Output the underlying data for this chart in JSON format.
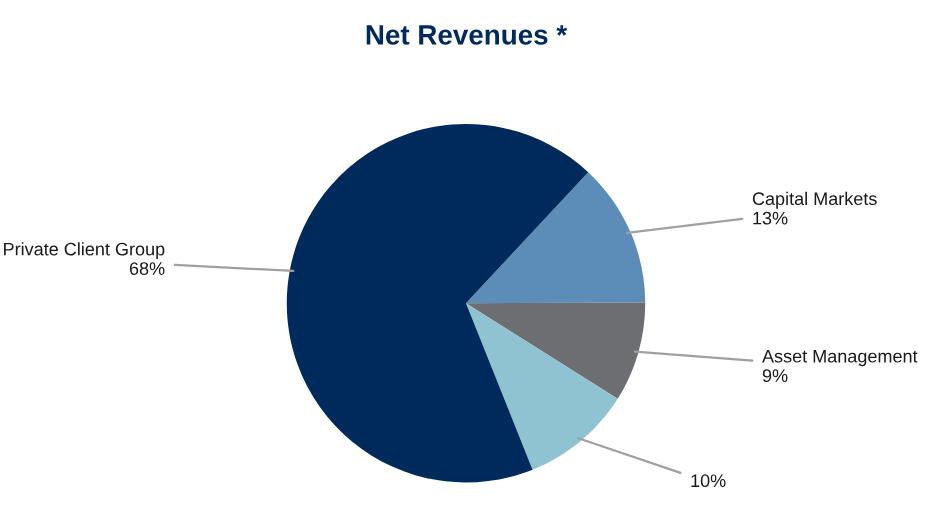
{
  "chart_data": {
    "type": "pie",
    "title": "Net Revenues *",
    "categories": [
      "Capital Markets",
      "Asset Management",
      null,
      "Private Client Group"
    ],
    "values": [
      13,
      9,
      10,
      68
    ],
    "colors": [
      "#5b8db8",
      "#6d6e71",
      "#8fc3d1",
      "#002a5c"
    ],
    "value_labels": [
      "13%",
      "9%",
      "10%",
      "68%"
    ],
    "legend": false
  }
}
